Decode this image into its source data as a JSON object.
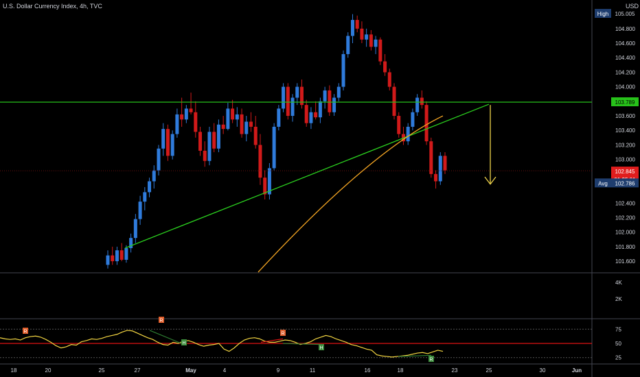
{
  "header": {
    "title": "U.S. Dollar Currency Index, 4h, TVC",
    "currency": "USD"
  },
  "colors": {
    "background": "#000000",
    "up": "#2f7bdb",
    "down": "#d11a1a",
    "resistance": "#27c21a",
    "trendline": "#2bd11f",
    "curve": "#f5a623",
    "arrow": "#f2d64c",
    "oscillator": "#f5d742",
    "osc_band": "#e01414",
    "price_badge": "#e01d1d",
    "axis_text": "#d1d4dc"
  },
  "price_axis": {
    "ticks": [
      "104.800",
      "104.600",
      "104.400",
      "104.200",
      "104.000",
      "103.600",
      "103.400",
      "103.200",
      "103.000",
      "102.400",
      "102.200",
      "102.000",
      "101.800",
      "101.600"
    ],
    "labels": {
      "high_tag": "High",
      "high_value": "105.005",
      "level_value": "103.789",
      "price_value": "102.845",
      "countdown": "01:35:01",
      "avg_tag": "Avg",
      "avg_value": "102.786"
    }
  },
  "volume_axis": {
    "ticks": [
      "4K",
      "2K"
    ]
  },
  "osc_axis": {
    "ticks": [
      "75",
      "50",
      "25"
    ]
  },
  "time_axis": {
    "ticks": [
      "18",
      "20",
      "25",
      "27",
      "May",
      "4",
      "9",
      "11",
      "16",
      "18",
      "23",
      "25",
      "30",
      "Jun"
    ]
  },
  "markers": [
    {
      "label": "R",
      "type": "bearish"
    },
    {
      "label": "R",
      "type": "bearish"
    },
    {
      "label": "H",
      "type": "bullish"
    },
    {
      "label": "R",
      "type": "bearish"
    },
    {
      "label": "H",
      "type": "bullish"
    },
    {
      "label": "R",
      "type": "bullish"
    }
  ],
  "chart_data": {
    "type": "candlestick",
    "x_labels": [
      "18",
      "20",
      "25",
      "27",
      "May",
      "4",
      "9",
      "11",
      "16",
      "18",
      "23",
      "25",
      "30",
      "Jun"
    ],
    "ylim": [
      101.45,
      105.1
    ],
    "levels": {
      "resistance": 103.789,
      "current": 102.845,
      "avg": 102.786,
      "high": 105.005
    },
    "trendline": {
      "from": [
        "Apr 24",
        101.78
      ],
      "to": [
        "May 25",
        103.76
      ]
    },
    "oscillator": {
      "levels": [
        75,
        50,
        25
      ],
      "values": [
        60,
        58,
        57,
        58,
        56,
        60,
        62,
        63,
        61,
        57,
        52,
        46,
        42,
        44,
        48,
        47,
        53,
        55,
        58,
        57,
        59,
        62,
        64,
        66,
        70,
        73,
        72,
        68,
        64,
        60,
        57,
        52,
        48,
        47,
        52,
        50,
        54,
        55,
        52,
        48,
        45,
        47,
        48,
        50,
        40,
        36,
        42,
        50,
        56,
        59,
        60,
        58,
        54,
        52,
        52,
        54,
        56,
        55,
        52,
        48,
        50,
        53,
        58,
        61,
        64,
        62,
        58,
        55,
        52,
        48,
        46,
        43,
        40,
        38,
        30,
        28,
        27,
        26,
        27,
        28,
        29,
        31,
        33,
        34,
        32,
        35,
        38,
        36
      ]
    },
    "candles": [
      [
        101.55,
        101.75,
        101.5,
        101.68
      ],
      [
        101.68,
        101.8,
        101.55,
        101.6
      ],
      [
        101.6,
        101.8,
        101.55,
        101.75
      ],
      [
        101.75,
        101.85,
        101.6,
        101.62
      ],
      [
        101.62,
        101.82,
        101.58,
        101.78
      ],
      [
        101.78,
        101.98,
        101.72,
        101.92
      ],
      [
        101.92,
        102.25,
        101.85,
        102.18
      ],
      [
        102.18,
        102.5,
        102.1,
        102.42
      ],
      [
        102.42,
        102.62,
        102.3,
        102.55
      ],
      [
        102.55,
        102.75,
        102.48,
        102.7
      ],
      [
        102.7,
        102.92,
        102.6,
        102.85
      ],
      [
        102.85,
        103.2,
        102.78,
        103.15
      ],
      [
        103.15,
        103.5,
        103.05,
        103.42
      ],
      [
        103.42,
        103.48,
        102.98,
        103.05
      ],
      [
        103.05,
        103.4,
        103.0,
        103.35
      ],
      [
        103.35,
        103.7,
        103.3,
        103.62
      ],
      [
        103.62,
        103.85,
        103.45,
        103.55
      ],
      [
        103.55,
        103.75,
        103.5,
        103.7
      ],
      [
        103.7,
        103.92,
        103.62,
        103.65
      ],
      [
        103.65,
        103.8,
        103.3,
        103.38
      ],
      [
        103.38,
        103.45,
        103.05,
        103.12
      ],
      [
        103.12,
        103.25,
        102.9,
        102.98
      ],
      [
        102.98,
        103.45,
        102.92,
        103.38
      ],
      [
        103.38,
        103.5,
        103.1,
        103.15
      ],
      [
        103.15,
        103.55,
        103.1,
        103.48
      ],
      [
        103.48,
        103.6,
        103.35,
        103.42
      ],
      [
        103.42,
        103.78,
        103.4,
        103.7
      ],
      [
        103.7,
        103.82,
        103.5,
        103.55
      ],
      [
        103.55,
        103.72,
        103.45,
        103.62
      ],
      [
        103.62,
        103.7,
        103.3,
        103.35
      ],
      [
        103.35,
        103.6,
        103.25,
        103.52
      ],
      [
        103.52,
        103.65,
        103.38,
        103.45
      ],
      [
        103.45,
        103.6,
        103.15,
        103.2
      ],
      [
        103.2,
        103.35,
        102.65,
        102.75
      ],
      [
        102.75,
        102.85,
        102.45,
        102.52
      ],
      [
        102.52,
        102.95,
        102.45,
        102.88
      ],
      [
        102.88,
        103.5,
        102.85,
        103.45
      ],
      [
        103.45,
        103.75,
        103.4,
        103.7
      ],
      [
        103.7,
        104.05,
        103.65,
        104.0
      ],
      [
        104.0,
        104.05,
        103.55,
        103.6
      ],
      [
        103.6,
        103.9,
        103.52,
        103.85
      ],
      [
        103.85,
        104.05,
        103.75,
        104.0
      ],
      [
        104.0,
        104.1,
        103.7,
        103.75
      ],
      [
        103.75,
        103.82,
        103.45,
        103.5
      ],
      [
        103.5,
        103.72,
        103.42,
        103.65
      ],
      [
        103.65,
        103.8,
        103.55,
        103.58
      ],
      [
        103.58,
        103.85,
        103.5,
        103.8
      ],
      [
        103.8,
        104.0,
        103.7,
        103.95
      ],
      [
        103.95,
        104.02,
        103.6,
        103.65
      ],
      [
        103.65,
        103.9,
        103.6,
        103.85
      ],
      [
        103.85,
        104.05,
        103.8,
        104.0
      ],
      [
        104.0,
        104.5,
        103.95,
        104.45
      ],
      [
        104.45,
        104.75,
        104.4,
        104.7
      ],
      [
        104.7,
        105.0,
        104.6,
        104.92
      ],
      [
        104.92,
        104.98,
        104.75,
        104.8
      ],
      [
        104.8,
        104.9,
        104.6,
        104.65
      ],
      [
        104.65,
        104.8,
        104.55,
        104.72
      ],
      [
        104.72,
        104.78,
        104.5,
        104.55
      ],
      [
        104.55,
        104.7,
        104.45,
        104.65
      ],
      [
        104.65,
        104.68,
        104.3,
        104.35
      ],
      [
        104.35,
        104.45,
        104.15,
        104.2
      ],
      [
        104.2,
        104.25,
        103.95,
        104.0
      ],
      [
        104.0,
        104.05,
        103.55,
        103.6
      ],
      [
        103.6,
        103.65,
        103.3,
        103.35
      ],
      [
        103.35,
        103.45,
        103.2,
        103.25
      ],
      [
        103.25,
        103.5,
        103.2,
        103.45
      ],
      [
        103.45,
        103.7,
        103.4,
        103.65
      ],
      [
        103.65,
        103.9,
        103.6,
        103.85
      ],
      [
        103.85,
        103.95,
        103.7,
        103.75
      ],
      [
        103.75,
        103.8,
        103.2,
        103.25
      ],
      [
        103.25,
        103.3,
        102.75,
        102.8
      ],
      [
        102.8,
        102.85,
        102.6,
        102.7
      ],
      [
        102.7,
        103.1,
        102.65,
        103.05
      ],
      [
        103.05,
        103.1,
        102.8,
        102.85
      ]
    ]
  }
}
